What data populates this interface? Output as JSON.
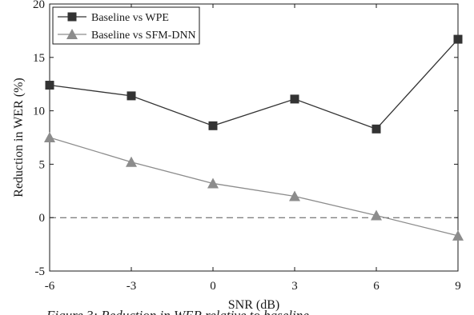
{
  "chart_data": {
    "type": "line",
    "xlabel": "SNR (dB)",
    "ylabel": "Reduction in WER (%)",
    "x": [
      -6,
      -3,
      0,
      3,
      6,
      9
    ],
    "xticks": [
      "-6",
      "-3",
      "0",
      "3",
      "6",
      "9"
    ],
    "yticks": [
      "-5",
      "0",
      "5",
      "10",
      "15",
      "20"
    ],
    "xlim": [
      -6,
      9
    ],
    "ylim": [
      -5,
      20
    ],
    "grid": false,
    "legend_position": "top-left",
    "reference_line": {
      "y": 0,
      "style": "dashed"
    },
    "series": [
      {
        "name": "Baseline vs WPE",
        "marker": "square",
        "color": "#333333",
        "values": [
          12.4,
          11.4,
          8.6,
          11.1,
          8.3,
          16.7
        ]
      },
      {
        "name": "Baseline vs SFM-DNN",
        "marker": "triangle",
        "color": "#8c8c8c",
        "values": [
          7.5,
          5.2,
          3.2,
          2.0,
          0.2,
          -1.7
        ]
      }
    ]
  },
  "caption_fragment": "Figure 3: Reduction in WER relative to baseline"
}
